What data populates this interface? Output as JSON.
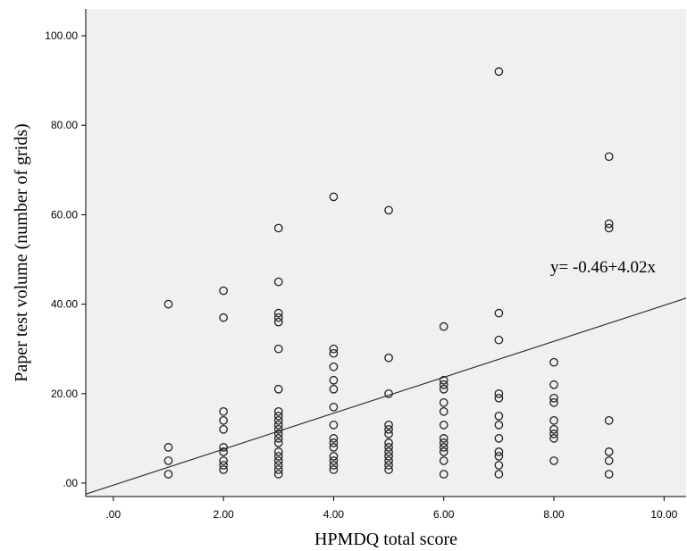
{
  "chart_data": {
    "type": "scatter",
    "title": "",
    "xlabel": "HPMDQ total score",
    "ylabel": "Paper test volume (number of grids)",
    "xlim": [
      -0.5,
      10.4
    ],
    "ylim": [
      -3,
      106
    ],
    "x_ticks": [
      0,
      2,
      4,
      6,
      8,
      10
    ],
    "x_tick_labels": [
      ".00",
      "2.00",
      "4.00",
      "6.00",
      "8.00",
      "10.00"
    ],
    "y_ticks": [
      0,
      20,
      40,
      60,
      80,
      100
    ],
    "y_tick_labels": [
      ".00",
      "20.00",
      "40.00",
      "60.00",
      "80.00",
      "100.00"
    ],
    "grid": false,
    "legend": "none",
    "colors": {
      "background": "#f0f0f0",
      "marker": "#222222",
      "line": "#333333"
    },
    "annotation": {
      "text": "y= -0.46+4.02x"
    },
    "fit_line": {
      "intercept": -0.46,
      "slope": 4.02
    },
    "points": [
      {
        "x": 1,
        "y": 40
      },
      {
        "x": 1,
        "y": 8
      },
      {
        "x": 1,
        "y": 5
      },
      {
        "x": 1,
        "y": 2
      },
      {
        "x": 2,
        "y": 43
      },
      {
        "x": 2,
        "y": 37
      },
      {
        "x": 2,
        "y": 16
      },
      {
        "x": 2,
        "y": 14
      },
      {
        "x": 2,
        "y": 12
      },
      {
        "x": 2,
        "y": 8
      },
      {
        "x": 2,
        "y": 7
      },
      {
        "x": 2,
        "y": 5
      },
      {
        "x": 2,
        "y": 4
      },
      {
        "x": 2,
        "y": 3
      },
      {
        "x": 3,
        "y": 57
      },
      {
        "x": 3,
        "y": 45
      },
      {
        "x": 3,
        "y": 38
      },
      {
        "x": 3,
        "y": 37
      },
      {
        "x": 3,
        "y": 36
      },
      {
        "x": 3,
        "y": 30
      },
      {
        "x": 3,
        "y": 21
      },
      {
        "x": 3,
        "y": 16
      },
      {
        "x": 3,
        "y": 15
      },
      {
        "x": 3,
        "y": 14
      },
      {
        "x": 3,
        "y": 13
      },
      {
        "x": 3,
        "y": 12
      },
      {
        "x": 3,
        "y": 11
      },
      {
        "x": 3,
        "y": 10
      },
      {
        "x": 3,
        "y": 9
      },
      {
        "x": 3,
        "y": 7
      },
      {
        "x": 3,
        "y": 6
      },
      {
        "x": 3,
        "y": 5
      },
      {
        "x": 3,
        "y": 4
      },
      {
        "x": 3,
        "y": 3
      },
      {
        "x": 3,
        "y": 2
      },
      {
        "x": 4,
        "y": 64
      },
      {
        "x": 4,
        "y": 30
      },
      {
        "x": 4,
        "y": 29
      },
      {
        "x": 4,
        "y": 26
      },
      {
        "x": 4,
        "y": 23
      },
      {
        "x": 4,
        "y": 21
      },
      {
        "x": 4,
        "y": 17
      },
      {
        "x": 4,
        "y": 13
      },
      {
        "x": 4,
        "y": 10
      },
      {
        "x": 4,
        "y": 9
      },
      {
        "x": 4,
        "y": 8
      },
      {
        "x": 4,
        "y": 6
      },
      {
        "x": 4,
        "y": 5
      },
      {
        "x": 4,
        "y": 4
      },
      {
        "x": 4,
        "y": 3
      },
      {
        "x": 5,
        "y": 61
      },
      {
        "x": 5,
        "y": 28
      },
      {
        "x": 5,
        "y": 20
      },
      {
        "x": 5,
        "y": 13
      },
      {
        "x": 5,
        "y": 12
      },
      {
        "x": 5,
        "y": 11
      },
      {
        "x": 5,
        "y": 9
      },
      {
        "x": 5,
        "y": 8
      },
      {
        "x": 5,
        "y": 7
      },
      {
        "x": 5,
        "y": 6
      },
      {
        "x": 5,
        "y": 5
      },
      {
        "x": 5,
        "y": 4
      },
      {
        "x": 5,
        "y": 3
      },
      {
        "x": 6,
        "y": 35
      },
      {
        "x": 6,
        "y": 23
      },
      {
        "x": 6,
        "y": 22
      },
      {
        "x": 6,
        "y": 21
      },
      {
        "x": 6,
        "y": 18
      },
      {
        "x": 6,
        "y": 16
      },
      {
        "x": 6,
        "y": 13
      },
      {
        "x": 6,
        "y": 10
      },
      {
        "x": 6,
        "y": 9
      },
      {
        "x": 6,
        "y": 8
      },
      {
        "x": 6,
        "y": 7
      },
      {
        "x": 6,
        "y": 5
      },
      {
        "x": 6,
        "y": 2
      },
      {
        "x": 7,
        "y": 92
      },
      {
        "x": 7,
        "y": 38
      },
      {
        "x": 7,
        "y": 32
      },
      {
        "x": 7,
        "y": 20
      },
      {
        "x": 7,
        "y": 19
      },
      {
        "x": 7,
        "y": 15
      },
      {
        "x": 7,
        "y": 13
      },
      {
        "x": 7,
        "y": 10
      },
      {
        "x": 7,
        "y": 7
      },
      {
        "x": 7,
        "y": 6
      },
      {
        "x": 7,
        "y": 4
      },
      {
        "x": 7,
        "y": 2
      },
      {
        "x": 8,
        "y": 27
      },
      {
        "x": 8,
        "y": 22
      },
      {
        "x": 8,
        "y": 19
      },
      {
        "x": 8,
        "y": 18
      },
      {
        "x": 8,
        "y": 14
      },
      {
        "x": 8,
        "y": 12
      },
      {
        "x": 8,
        "y": 11
      },
      {
        "x": 8,
        "y": 10
      },
      {
        "x": 8,
        "y": 5
      },
      {
        "x": 9,
        "y": 73
      },
      {
        "x": 9,
        "y": 58
      },
      {
        "x": 9,
        "y": 57
      },
      {
        "x": 9,
        "y": 14
      },
      {
        "x": 9,
        "y": 7
      },
      {
        "x": 9,
        "y": 5
      },
      {
        "x": 9,
        "y": 2
      }
    ]
  }
}
